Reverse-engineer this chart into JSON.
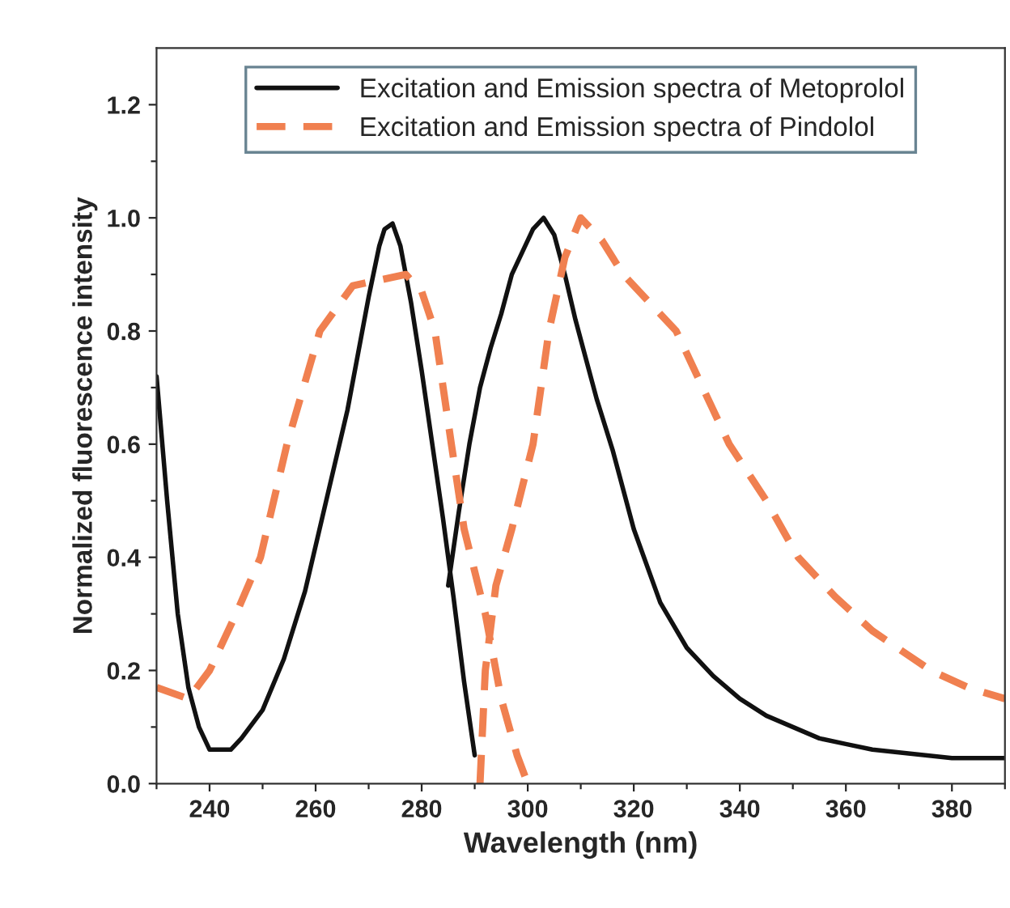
{
  "chart_data": {
    "type": "line",
    "xlabel": "Wavelength (nm)",
    "ylabel": "Normalized fluorescence intensity",
    "xlim": [
      230,
      390
    ],
    "ylim": [
      0,
      1.3
    ],
    "xticks": [
      {
        "value": 230,
        "label": null
      },
      240,
      {
        "value": 250,
        "label": null
      },
      260,
      {
        "value": 270,
        "label": null
      },
      280,
      {
        "value": 290,
        "label": null
      },
      300,
      {
        "value": 310,
        "label": null
      },
      320,
      {
        "value": 330,
        "label": null
      },
      340,
      {
        "value": 350,
        "label": null
      },
      360,
      {
        "value": 370,
        "label": null
      },
      380,
      {
        "value": 390,
        "label": null
      }
    ],
    "yticks": [
      "0.0",
      {
        "value": 0.1,
        "label": null
      },
      {
        "value": 0.2,
        "label": "0.2"
      },
      {
        "value": 0.3,
        "label": null
      },
      {
        "value": 0.4,
        "label": "0.4"
      },
      {
        "value": 0.5,
        "label": null
      },
      {
        "value": 0.6,
        "label": "0.6"
      },
      {
        "value": 0.7,
        "label": null
      },
      {
        "value": 0.8,
        "label": "0.8"
      },
      {
        "value": 0.9,
        "label": null
      },
      {
        "value": 1.0,
        "label": "1.0"
      },
      {
        "value": 1.1,
        "label": null
      },
      {
        "value": 1.2,
        "label": "1.2"
      }
    ],
    "legend": "top",
    "grid": false,
    "marker": "none",
    "series": [
      {
        "name": "Excitation and Emission spectra of Metoprolol",
        "color": "#111111",
        "line_style": "solid",
        "x": [
          230,
          232,
          234,
          236,
          238,
          240,
          242,
          244,
          246,
          250,
          254,
          258,
          262,
          266,
          268,
          270,
          272,
          273,
          274.5,
          276,
          278,
          280,
          282,
          284,
          286,
          288,
          290,
          null,
          285,
          287,
          289,
          291,
          293,
          295,
          297,
          299,
          301,
          303,
          305,
          307,
          309,
          311,
          313,
          316,
          320,
          325,
          330,
          335,
          340,
          345,
          350,
          355,
          360,
          365,
          370,
          375,
          380,
          385,
          390
        ],
        "values": [
          0.72,
          0.5,
          0.3,
          0.17,
          0.1,
          0.06,
          0.06,
          0.06,
          0.08,
          0.13,
          0.22,
          0.34,
          0.5,
          0.66,
          0.76,
          0.86,
          0.95,
          0.98,
          0.99,
          0.95,
          0.85,
          0.73,
          0.6,
          0.47,
          0.33,
          0.18,
          0.05,
          null,
          0.35,
          0.48,
          0.6,
          0.7,
          0.77,
          0.83,
          0.9,
          0.94,
          0.98,
          1.0,
          0.97,
          0.9,
          0.82,
          0.75,
          0.68,
          0.59,
          0.45,
          0.32,
          0.24,
          0.19,
          0.15,
          0.12,
          0.1,
          0.08,
          0.07,
          0.06,
          0.055,
          0.05,
          0.045,
          0.045,
          0.045
        ]
      },
      {
        "name": "Excitation and Emission spectra of Pindolol",
        "color": "#f08050",
        "line_style": "dashed",
        "x": [
          230,
          236,
          240,
          245,
          249.6,
          254.6,
          260.8,
          267,
          272,
          277,
          280,
          282.5,
          285.6,
          288,
          292,
          295,
          298,
          300,
          null,
          291,
          292,
          294,
          297,
          301,
          304,
          307,
          310,
          314,
          318,
          323,
          328,
          333,
          338,
          345,
          351,
          358,
          365,
          376,
          383,
          390
        ],
        "values": [
          0.17,
          0.15,
          0.2,
          0.3,
          0.4,
          0.6,
          0.8,
          0.88,
          0.89,
          0.9,
          0.87,
          0.8,
          0.6,
          0.45,
          0.3,
          0.15,
          0.05,
          0.0,
          null,
          0.0,
          0.2,
          0.35,
          0.45,
          0.6,
          0.8,
          0.93,
          1.0,
          0.96,
          0.9,
          0.85,
          0.8,
          0.7,
          0.6,
          0.5,
          0.4,
          0.33,
          0.27,
          0.2,
          0.17,
          0.15
        ]
      }
    ]
  }
}
